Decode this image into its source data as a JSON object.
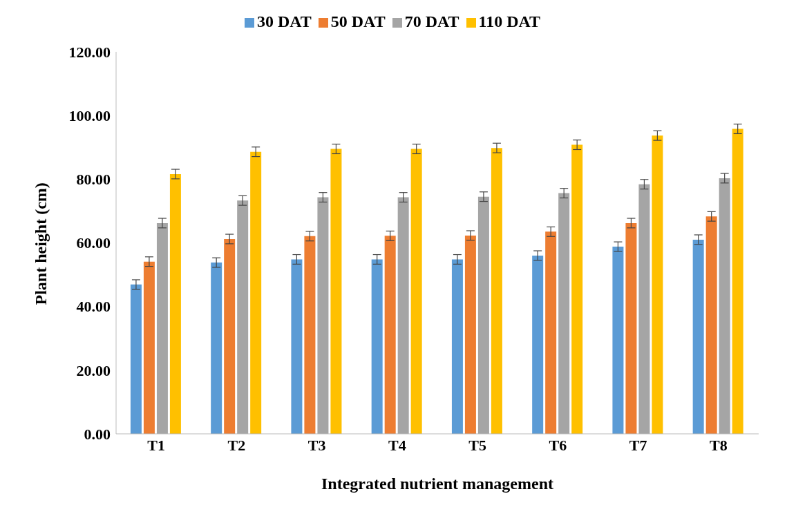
{
  "chart_data": {
    "type": "bar",
    "xlabel": "Integrated nutrient management",
    "ylabel": "Plant height (cm)",
    "categories": [
      "T1",
      "T2",
      "T3",
      "T4",
      "T5",
      "T6",
      "T7",
      "T8"
    ],
    "series": [
      {
        "name": "30 DAT",
        "color": "#5b9bd5",
        "values": [
          46.9,
          53.8,
          54.8,
          54.8,
          54.8,
          56.0,
          58.8,
          61.0
        ],
        "errors": [
          1.5,
          1.5,
          1.5,
          1.5,
          1.5,
          1.5,
          1.5,
          1.5
        ]
      },
      {
        "name": "50 DAT",
        "color": "#ed7d31",
        "values": [
          54.1,
          61.2,
          62.1,
          62.2,
          62.3,
          63.5,
          66.2,
          68.3
        ],
        "errors": [
          1.5,
          1.5,
          1.5,
          1.5,
          1.5,
          1.5,
          1.5,
          1.5
        ]
      },
      {
        "name": "70 DAT",
        "color": "#a5a5a5",
        "values": [
          66.2,
          73.3,
          74.3,
          74.3,
          74.5,
          75.6,
          78.4,
          80.3
        ],
        "errors": [
          1.5,
          1.5,
          1.5,
          1.5,
          1.5,
          1.5,
          1.5,
          1.5
        ]
      },
      {
        "name": "110 DAT",
        "color": "#ffc000",
        "values": [
          81.6,
          88.6,
          89.5,
          89.5,
          89.8,
          90.8,
          93.7,
          95.8
        ],
        "errors": [
          1.5,
          1.5,
          1.5,
          1.5,
          1.5,
          1.5,
          1.5,
          1.5
        ]
      }
    ],
    "ylim": [
      0,
      120
    ],
    "yticks": [
      {
        "value": 0,
        "label": "0.00"
      },
      {
        "value": 20,
        "label": "20.00"
      },
      {
        "value": 40,
        "label": "40.00"
      },
      {
        "value": 60,
        "label": "60.00"
      },
      {
        "value": 80,
        "label": "80.00"
      },
      {
        "value": 100,
        "label": "100.00"
      },
      {
        "value": 120,
        "label": "120.00"
      }
    ],
    "legend": "top",
    "grid": false
  }
}
